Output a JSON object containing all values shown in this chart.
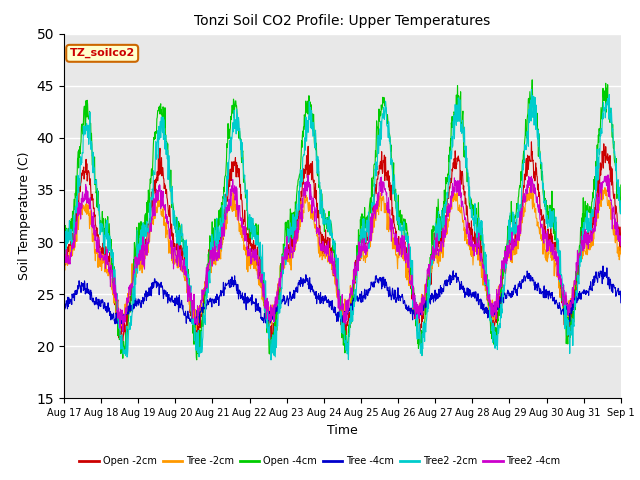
{
  "title": "Tonzi Soil CO2 Profile: Upper Temperatures",
  "xlabel": "Time",
  "ylabel": "Soil Temperature (C)",
  "ylim": [
    15,
    50
  ],
  "yticks": [
    15,
    20,
    25,
    30,
    35,
    40,
    45,
    50
  ],
  "xtick_labels": [
    "Aug 17",
    "Aug 18",
    "Aug 19",
    "Aug 20",
    "Aug 21",
    "Aug 22",
    "Aug 23",
    "Aug 24",
    "Aug 25",
    "Aug 26",
    "Aug 27",
    "Aug 28",
    "Aug 29",
    "Aug 30",
    "Aug 31",
    "Sep 1"
  ],
  "legend_labels": [
    "Open -2cm",
    "Tree -2cm",
    "Open -4cm",
    "Tree -4cm",
    "Tree2 -2cm",
    "Tree2 -4cm"
  ],
  "line_colors": [
    "#cc0000",
    "#ff9900",
    "#00cc00",
    "#0000cc",
    "#00cccc",
    "#cc00cc"
  ],
  "annotation_text": "TZ_soilco2",
  "annotation_color": "#cc0000",
  "annotation_bg": "#ffffcc",
  "annotation_edge": "#cc6600",
  "plot_bg_color": "#e8e8e8",
  "fig_bg_color": "#ffffff",
  "grid_color": "#ffffff",
  "n_points": 1440,
  "n_days": 15,
  "open_2cm_amp": 8.0,
  "open_2cm_mean": 29.0,
  "open_2cm_min": 22.0,
  "tree_2cm_amp": 5.5,
  "tree_2cm_mean": 28.0,
  "tree_2cm_min": 22.0,
  "open_4cm_amp": 11.5,
  "open_4cm_mean": 31.0,
  "open_4cm_min": 21.0,
  "tree_4cm_amp": 1.8,
  "tree_4cm_mean": 24.0,
  "tree_4cm_min": 22.0,
  "tree2_2cm_amp": 11.0,
  "tree2_2cm_mean": 30.0,
  "tree2_2cm_min": 19.5,
  "tree2_4cm_amp": 6.0,
  "tree2_4cm_mean": 28.5,
  "tree2_4cm_min": 21.5,
  "peak_sharpness": 2.5
}
